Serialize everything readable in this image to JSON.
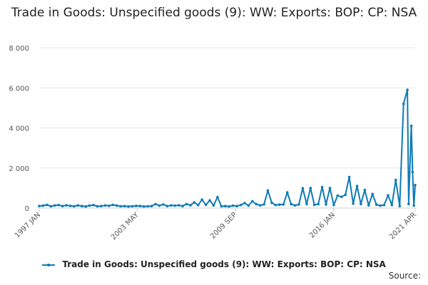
{
  "title": "Trade in Goods: Unspecified goods (9): WW: Exports: BOP: CP: NSA",
  "source_label": "Source:",
  "colors": {
    "series": "#0f7bb6",
    "grid": "#e6e6e6",
    "axis": "#cccccc"
  },
  "chart_data": {
    "type": "line",
    "title": "Trade in Goods: Unspecified goods (9): WW: Exports: BOP: CP: NSA",
    "xlabel": "",
    "ylabel": "",
    "ylim": [
      0,
      8000
    ],
    "yticks": [
      0,
      2000,
      4000,
      6000,
      8000
    ],
    "ytick_labels": [
      "0",
      "2 000",
      "4 000",
      "6 000",
      "8 000"
    ],
    "xticks": [
      "1997 JAN",
      "2003 MAY",
      "2009 SEP",
      "2016 JAN",
      "2021 APR"
    ],
    "x_range": [
      "1997-01",
      "2021-04"
    ],
    "grid": true,
    "legend_position": "bottom",
    "series": [
      {
        "name": "Trade in Goods: Unspecified goods (9): WW: Exports: BOP: CP: NSA",
        "points": [
          [
            "1997-01",
            100
          ],
          [
            "1997-04",
            120
          ],
          [
            "1997-07",
            160
          ],
          [
            "1997-10",
            90
          ],
          [
            "1998-01",
            130
          ],
          [
            "1998-04",
            150
          ],
          [
            "1998-07",
            100
          ],
          [
            "1998-10",
            140
          ],
          [
            "1999-01",
            110
          ],
          [
            "1999-04",
            90
          ],
          [
            "1999-07",
            130
          ],
          [
            "1999-10",
            100
          ],
          [
            "2000-01",
            80
          ],
          [
            "2000-04",
            120
          ],
          [
            "2000-07",
            150
          ],
          [
            "2000-10",
            90
          ],
          [
            "2001-01",
            100
          ],
          [
            "2001-04",
            130
          ],
          [
            "2001-07",
            110
          ],
          [
            "2001-10",
            160
          ],
          [
            "2002-01",
            120
          ],
          [
            "2002-04",
            90
          ],
          [
            "2002-07",
            100
          ],
          [
            "2002-10",
            80
          ],
          [
            "2003-01",
            90
          ],
          [
            "2003-04",
            110
          ],
          [
            "2003-07",
            100
          ],
          [
            "2003-10",
            80
          ],
          [
            "2004-01",
            90
          ],
          [
            "2004-04",
            100
          ],
          [
            "2004-07",
            200
          ],
          [
            "2004-10",
            120
          ],
          [
            "2005-01",
            180
          ],
          [
            "2005-04",
            100
          ],
          [
            "2005-07",
            130
          ],
          [
            "2005-10",
            120
          ],
          [
            "2006-01",
            140
          ],
          [
            "2006-04",
            100
          ],
          [
            "2006-07",
            200
          ],
          [
            "2006-10",
            140
          ],
          [
            "2007-01",
            280
          ],
          [
            "2007-04",
            150
          ],
          [
            "2007-07",
            420
          ],
          [
            "2007-10",
            160
          ],
          [
            "2008-01",
            380
          ],
          [
            "2008-04",
            130
          ],
          [
            "2008-07",
            550
          ],
          [
            "2008-10",
            90
          ],
          [
            "2009-01",
            100
          ],
          [
            "2009-04",
            80
          ],
          [
            "2009-07",
            120
          ],
          [
            "2009-10",
            100
          ],
          [
            "2010-01",
            150
          ],
          [
            "2010-04",
            250
          ],
          [
            "2010-07",
            120
          ],
          [
            "2010-10",
            340
          ],
          [
            "2011-01",
            200
          ],
          [
            "2011-04",
            130
          ],
          [
            "2011-07",
            180
          ],
          [
            "2011-10",
            880
          ],
          [
            "2012-01",
            260
          ],
          [
            "2012-04",
            150
          ],
          [
            "2012-07",
            170
          ],
          [
            "2012-10",
            180
          ],
          [
            "2013-01",
            780
          ],
          [
            "2013-04",
            200
          ],
          [
            "2013-07",
            130
          ],
          [
            "2013-10",
            180
          ],
          [
            "2014-01",
            990
          ],
          [
            "2014-04",
            200
          ],
          [
            "2014-07",
            1000
          ],
          [
            "2014-10",
            160
          ],
          [
            "2015-01",
            200
          ],
          [
            "2015-04",
            1050
          ],
          [
            "2015-07",
            180
          ],
          [
            "2015-10",
            1000
          ],
          [
            "2016-01",
            150
          ],
          [
            "2016-04",
            620
          ],
          [
            "2016-07",
            560
          ],
          [
            "2016-10",
            660
          ],
          [
            "2017-01",
            1550
          ],
          [
            "2017-04",
            220
          ],
          [
            "2017-07",
            1100
          ],
          [
            "2017-10",
            200
          ],
          [
            "2018-01",
            900
          ],
          [
            "2018-04",
            130
          ],
          [
            "2018-07",
            700
          ],
          [
            "2018-10",
            170
          ],
          [
            "2019-01",
            120
          ],
          [
            "2019-04",
            150
          ],
          [
            "2019-07",
            640
          ],
          [
            "2019-10",
            150
          ],
          [
            "2020-01",
            1400
          ],
          [
            "2020-04",
            100
          ],
          [
            "2020-07",
            5200
          ],
          [
            "2020-10",
            5900
          ],
          [
            "2020-11",
            200
          ],
          [
            "2021-01",
            4100
          ],
          [
            "2021-02",
            1800
          ],
          [
            "2021-03",
            120
          ],
          [
            "2021-04",
            1150
          ]
        ]
      }
    ]
  }
}
